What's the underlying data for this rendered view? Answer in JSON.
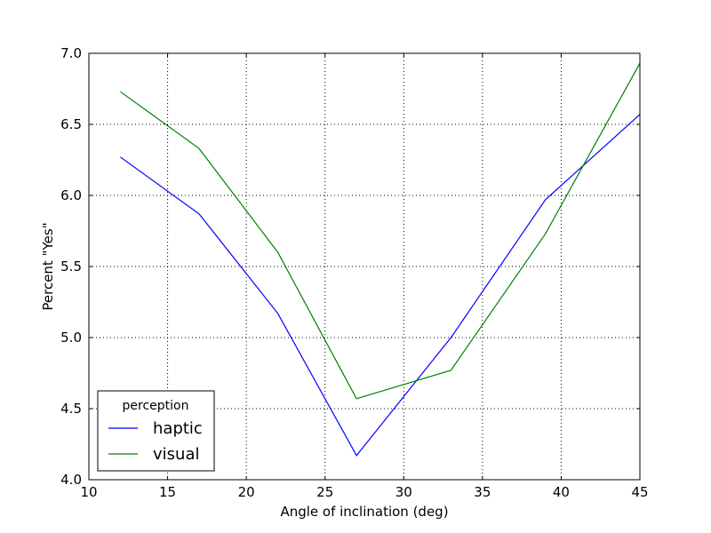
{
  "chart_data": {
    "type": "line",
    "xlabel": "Angle of inclination (deg)",
    "ylabel": "Percent \"Yes\"",
    "xlim": [
      10,
      45
    ],
    "ylim": [
      4.0,
      7.0
    ],
    "xticks": [
      "10",
      "15",
      "20",
      "25",
      "30",
      "35",
      "40",
      "45"
    ],
    "yticks": [
      "4.0",
      "4.5",
      "5.0",
      "5.5",
      "6.0",
      "6.5",
      "7.0"
    ],
    "grid": true,
    "legend_title": "perception",
    "legend_position": "lower-left",
    "x": [
      12,
      17,
      22,
      27,
      33,
      39,
      45
    ],
    "series": [
      {
        "name": "haptic",
        "color": "#0000ff",
        "values": [
          6.27,
          5.87,
          5.17,
          4.17,
          5.0,
          5.97,
          6.57
        ]
      },
      {
        "name": "visual",
        "color": "#008000",
        "values": [
          6.73,
          6.33,
          5.6,
          4.57,
          4.77,
          5.73,
          6.93
        ]
      }
    ]
  }
}
